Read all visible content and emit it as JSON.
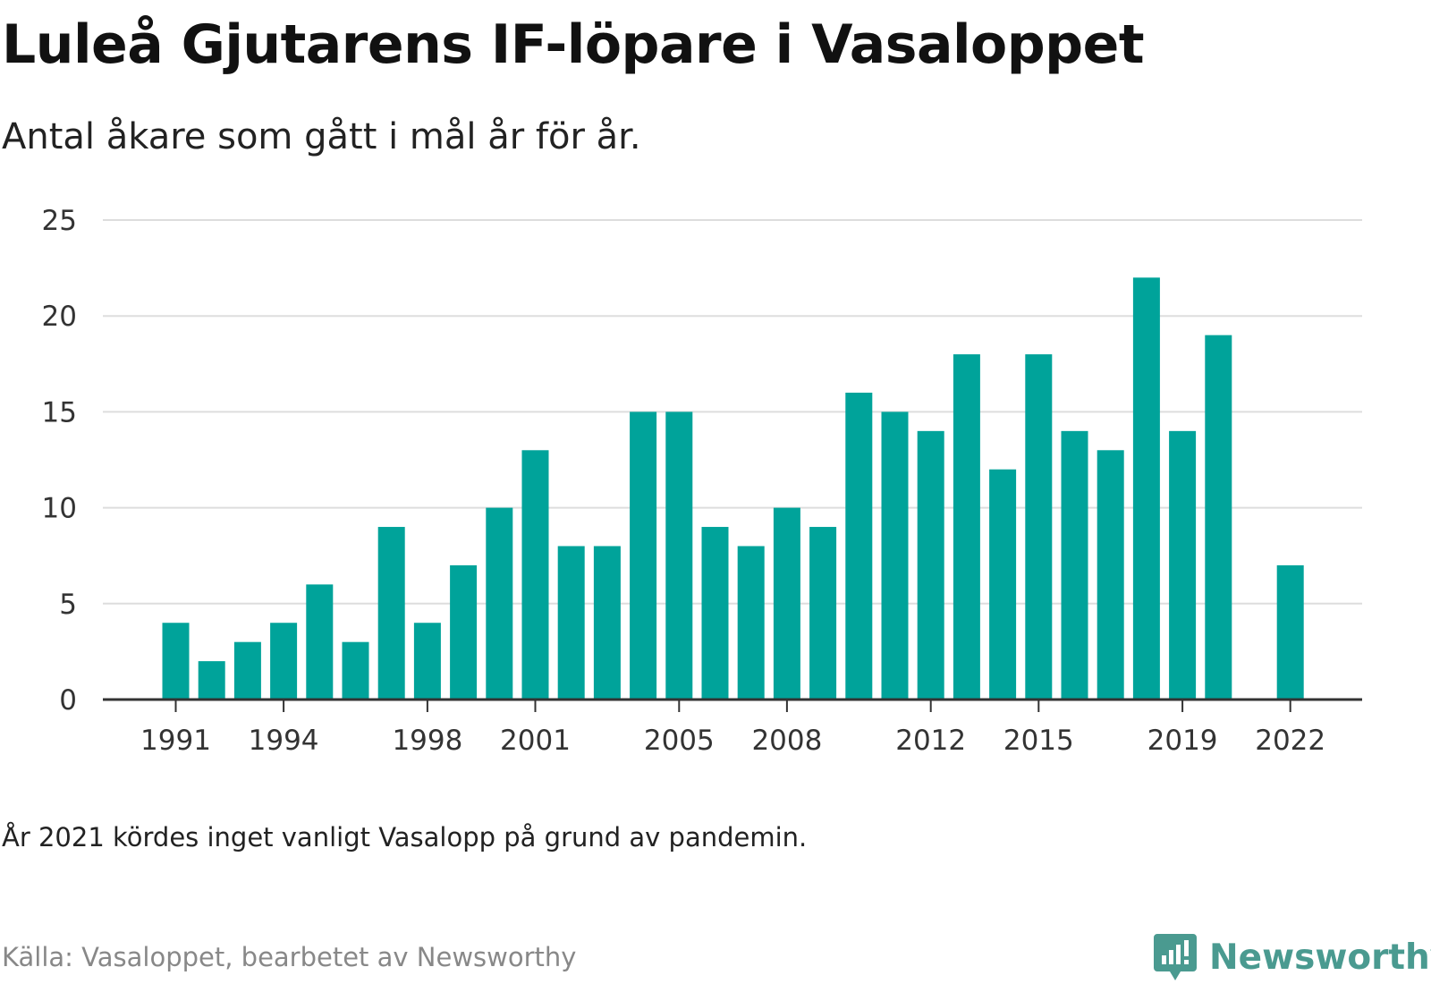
{
  "header": {
    "title": "Luleå Gjutarens IF-löpare i Vasaloppet",
    "subtitle": "Antal åkare som gått i mål år för år."
  },
  "footer": {
    "note": "År 2021 kördes inget vanligt Vasalopp på grund av pandemin.",
    "source": "Källa: Vasaloppet, bearbetet av Newsworthy",
    "brand": "Newsworthy",
    "brand_icon": "newsworthy-logo-icon"
  },
  "colors": {
    "bar": "#00a39a",
    "grid": "#dddddd",
    "axis": "#333333",
    "brand": "#4a9a90"
  },
  "chart_data": {
    "type": "bar",
    "x": [
      1991,
      1992,
      1993,
      1994,
      1995,
      1996,
      1997,
      1998,
      1999,
      2000,
      2001,
      2002,
      2003,
      2004,
      2005,
      2006,
      2007,
      2008,
      2009,
      2010,
      2011,
      2012,
      2013,
      2014,
      2015,
      2016,
      2017,
      2018,
      2019,
      2020,
      2021,
      2022
    ],
    "values": [
      4,
      2,
      3,
      4,
      6,
      3,
      9,
      4,
      7,
      10,
      13,
      8,
      8,
      15,
      15,
      9,
      8,
      10,
      9,
      16,
      15,
      14,
      18,
      12,
      18,
      14,
      13,
      22,
      14,
      19,
      null,
      7
    ],
    "x_tick_labels": [
      "1991",
      "1994",
      "1998",
      "2001",
      "2005",
      "2008",
      "2012",
      "2015",
      "2019",
      "2022"
    ],
    "y_ticks": [
      0,
      5,
      10,
      15,
      20,
      25
    ],
    "ylim": [
      0,
      25
    ],
    "xlabel": "",
    "ylabel": "",
    "grid": true,
    "legend": false
  }
}
